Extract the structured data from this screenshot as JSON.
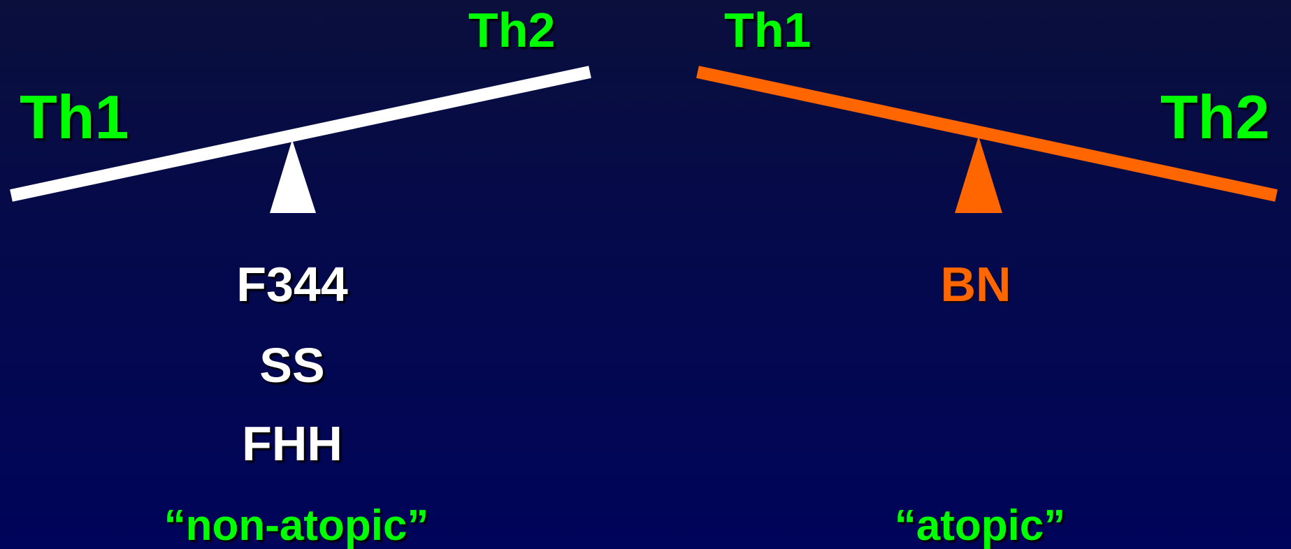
{
  "colors": {
    "background": "#00045a",
    "th_label": "#00ff00",
    "left_beam": "#ffffff",
    "right_beam": "#ff6600",
    "left_strains": "#ffffff",
    "right_strains": "#ff6600",
    "phenotype": "#00ff00"
  },
  "left_balance": {
    "th1_label": "Th1",
    "th2_label": "Th2",
    "strains": [
      "F344",
      "SS",
      "FHH"
    ],
    "phenotype": "“non-atopic”"
  },
  "right_balance": {
    "th1_label": "Th1",
    "th2_label": "Th2",
    "strains": [
      "BN"
    ],
    "phenotype": "“atopic”"
  }
}
